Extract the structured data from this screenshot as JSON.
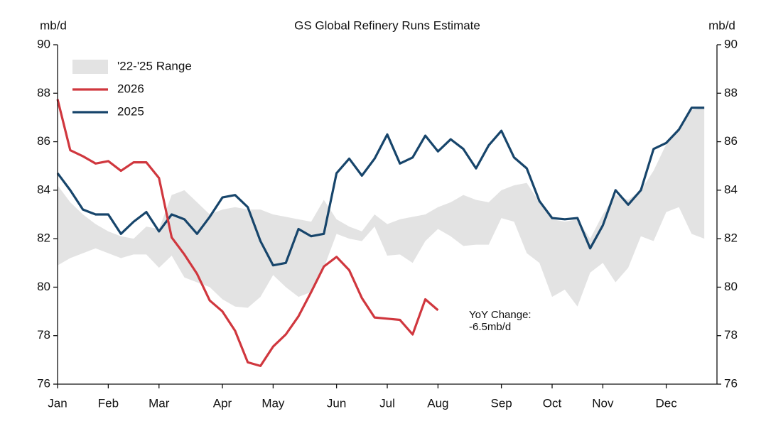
{
  "chart_data": {
    "type": "line",
    "title": "GS Global Refinery Runs Estimate",
    "y_label": "mb/d",
    "y2_label": "mb/d",
    "categories": [
      "Jan",
      null,
      null,
      null,
      "Feb",
      null,
      null,
      null,
      "Mar",
      null,
      null,
      null,
      null,
      "Apr",
      null,
      null,
      null,
      "May",
      null,
      null,
      null,
      null,
      "Jun",
      null,
      null,
      null,
      "Jul",
      null,
      null,
      null,
      "Aug",
      null,
      null,
      null,
      null,
      "Sep",
      null,
      null,
      null,
      "Oct",
      null,
      null,
      null,
      "Nov",
      null,
      null,
      null,
      null,
      "Dec",
      null,
      null,
      null
    ],
    "ylim": [
      76,
      90
    ],
    "yticks": [
      76,
      78,
      80,
      82,
      84,
      86,
      88,
      90
    ],
    "y2lim": [
      76,
      90
    ],
    "y2ticks": [
      76,
      78,
      80,
      82,
      84,
      86,
      88,
      90
    ],
    "legend": "upper left",
    "series": [
      {
        "name": "'22-'25 Range",
        "type": "band",
        "color": "#e3e3e3",
        "high": [
          84.2,
          83.5,
          83.0,
          82.6,
          82.3,
          82.1,
          82.0,
          82.5,
          82.4,
          83.8,
          84.0,
          83.5,
          83.0,
          83.2,
          83.3,
          83.2,
          83.2,
          83.0,
          82.9,
          82.8,
          82.7,
          83.6,
          82.8,
          82.5,
          82.3,
          83.0,
          82.6,
          82.8,
          82.9,
          83.0,
          83.3,
          83.5,
          83.8,
          83.6,
          83.5,
          84.0,
          84.2,
          84.3,
          83.5,
          82.8,
          82.7,
          82.8,
          82.0,
          83.0,
          83.8,
          83.6,
          84.0,
          84.8,
          85.9,
          86.6,
          87.3,
          87.4
        ],
        "low": [
          80.9,
          81.2,
          81.4,
          81.6,
          81.4,
          81.2,
          81.35,
          81.35,
          80.8,
          81.3,
          80.4,
          80.2,
          80.0,
          79.5,
          79.2,
          79.15,
          79.6,
          80.5,
          80.0,
          79.6,
          79.8,
          80.8,
          82.2,
          82.0,
          81.9,
          82.5,
          81.3,
          81.35,
          81.0,
          81.9,
          82.4,
          82.1,
          81.7,
          81.75,
          81.75,
          82.85,
          82.7,
          81.4,
          81.0,
          79.6,
          79.9,
          79.2,
          80.6,
          81.0,
          80.2,
          80.8,
          82.1,
          81.9,
          83.1,
          83.3,
          82.2,
          82.0
        ]
      },
      {
        "name": "2026",
        "color": "#d0373e",
        "values": [
          87.75,
          85.65,
          85.4,
          85.1,
          85.2,
          84.8,
          85.15,
          85.15,
          84.5,
          82.05,
          81.35,
          80.55,
          79.45,
          79.0,
          78.2,
          76.9,
          76.75,
          77.55,
          78.05,
          78.8,
          79.8,
          80.85,
          81.25,
          80.7,
          79.55,
          78.75,
          78.7,
          78.65,
          78.05,
          79.5,
          79.05,
          null,
          null,
          null,
          null,
          null,
          null,
          null,
          null,
          null,
          null,
          null,
          null,
          null,
          null,
          null,
          null,
          null,
          null,
          null,
          null,
          null
        ]
      },
      {
        "name": "2025",
        "color": "#17456b",
        "values": [
          84.7,
          84.0,
          83.2,
          83.0,
          83.0,
          82.2,
          82.7,
          83.1,
          82.3,
          83.0,
          82.8,
          82.2,
          82.9,
          83.7,
          83.8,
          83.3,
          81.9,
          80.9,
          81.0,
          82.4,
          82.1,
          82.2,
          84.7,
          85.3,
          84.6,
          85.3,
          86.3,
          85.1,
          85.35,
          86.25,
          85.6,
          86.1,
          85.7,
          84.9,
          85.85,
          86.45,
          85.35,
          84.9,
          83.55,
          82.85,
          82.8,
          82.85,
          81.6,
          82.55,
          84.0,
          83.4,
          84.0,
          85.7,
          85.95,
          86.5,
          87.4,
          87.4
        ]
      }
    ],
    "annotation": [
      "YoY Change:",
      "-6.5mb/d"
    ]
  }
}
